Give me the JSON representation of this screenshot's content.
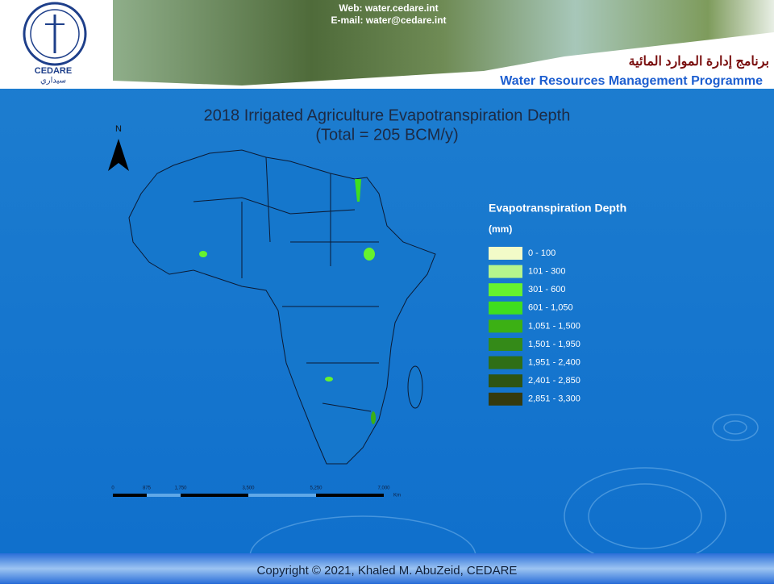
{
  "header": {
    "web": "Web: water.cedare.int",
    "email": "E-mail: water@cedare.int",
    "logo_text": "CEDARE",
    "logo_arabic": "سيداري",
    "arabic_title": "برنامج إدارة الموارد المائية",
    "english_title": "Water Resources Management Programme"
  },
  "map": {
    "title_line1": "2018 Irrigated Agriculture Evapotranspiration Depth",
    "title_line2": "(Total = 205 BCM/y)",
    "north": "N",
    "legend": {
      "title": "Evapotranspiration Depth",
      "unit": "(mm)",
      "items": [
        {
          "label": "0 - 100",
          "color": "#f2fbc8"
        },
        {
          "label": "101 - 300",
          "color": "#b5f58c"
        },
        {
          "label": "301 - 600",
          "color": "#66f22e"
        },
        {
          "label": "601 - 1,050",
          "color": "#3fde1e"
        },
        {
          "label": "1,051 - 1,500",
          "color": "#3cb014"
        },
        {
          "label": "1,501 - 1,950",
          "color": "#348a18"
        },
        {
          "label": "1,951 - 2,400",
          "color": "#2f6e16"
        },
        {
          "label": "2,401 - 2,850",
          "color": "#2e5412"
        },
        {
          "label": "2,851 - 3,300",
          "color": "#353a0e"
        }
      ]
    },
    "scale_labels": [
      "0",
      "875",
      "1,750",
      "3,500",
      "5,250",
      "7,000"
    ],
    "scale_unit": "Km"
  },
  "footer": {
    "copyright": "Copyright © 2021, Khaled M. AbuZeid, CEDARE"
  }
}
